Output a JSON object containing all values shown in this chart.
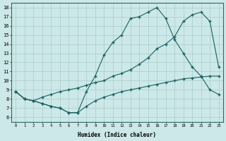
{
  "xlabel": "Humidex (Indice chaleur)",
  "bg_color": "#cce8e8",
  "line_color": "#1a6060",
  "grid_color": "#aacccc",
  "xlim": [
    -0.5,
    23.5
  ],
  "ylim": [
    5.5,
    18.5
  ],
  "xticks": [
    0,
    1,
    2,
    3,
    4,
    5,
    6,
    7,
    8,
    9,
    10,
    11,
    12,
    13,
    14,
    15,
    16,
    17,
    18,
    19,
    20,
    21,
    22,
    23
  ],
  "yticks": [
    6,
    7,
    8,
    9,
    10,
    11,
    12,
    13,
    14,
    15,
    16,
    17,
    18
  ],
  "line1_x": [
    0,
    1,
    2,
    3,
    4,
    5,
    6,
    7,
    8,
    9,
    10,
    11,
    12,
    13,
    14,
    15,
    16,
    17,
    18,
    19,
    20,
    21,
    22,
    23
  ],
  "line1_y": [
    8.8,
    8.0,
    7.8,
    7.5,
    7.2,
    7.0,
    6.5,
    6.5,
    8.8,
    10.5,
    12.8,
    14.2,
    15.0,
    16.8,
    17.0,
    17.5,
    18.0,
    16.8,
    14.5,
    13.0,
    11.5,
    10.5,
    9.0,
    8.5
  ],
  "line2_x": [
    0,
    1,
    2,
    3,
    4,
    5,
    6,
    7,
    8,
    9,
    10,
    11,
    12,
    13,
    14,
    15,
    16,
    17,
    18,
    19,
    20,
    21,
    22,
    23
  ],
  "line2_y": [
    8.8,
    8.0,
    7.8,
    8.2,
    8.5,
    8.8,
    9.0,
    9.2,
    9.5,
    9.8,
    10.0,
    10.5,
    10.8,
    11.2,
    11.8,
    12.5,
    13.5,
    14.0,
    14.8,
    16.5,
    17.2,
    17.5,
    16.5,
    11.5
  ],
  "line3_x": [
    0,
    1,
    2,
    3,
    4,
    5,
    6,
    7,
    8,
    9,
    10,
    11,
    12,
    13,
    14,
    15,
    16,
    17,
    18,
    19,
    20,
    21,
    22,
    23
  ],
  "line3_y": [
    8.8,
    8.0,
    7.8,
    7.5,
    7.2,
    7.0,
    6.5,
    6.5,
    7.2,
    7.8,
    8.2,
    8.5,
    8.8,
    9.0,
    9.2,
    9.4,
    9.6,
    9.8,
    10.0,
    10.2,
    10.3,
    10.4,
    10.5,
    10.5
  ]
}
